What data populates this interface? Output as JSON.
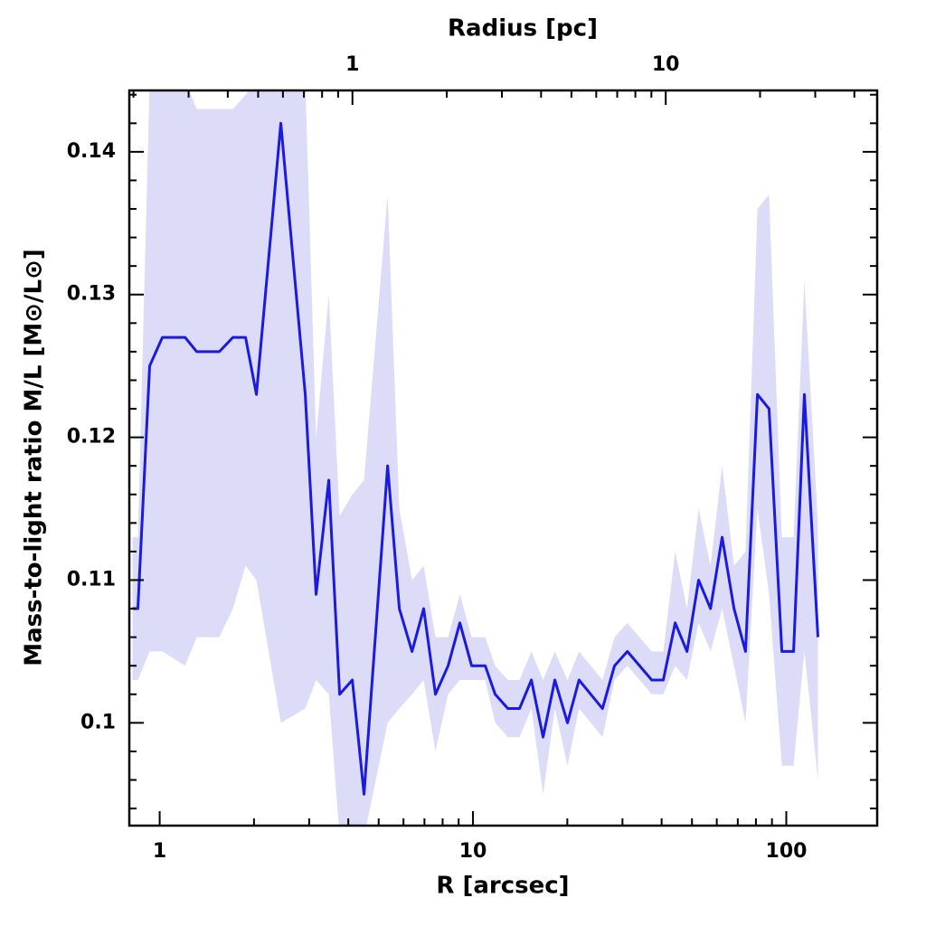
{
  "chart_data": {
    "type": "line",
    "xlabel": "R [arcsec]",
    "x2label": "Radius [pc]",
    "ylabel": "Mass-to-light ratio M/L [M⊙/L⊙]",
    "xscale": "log",
    "xlim": [
      0.8,
      195
    ],
    "xticks": [
      1,
      10,
      100
    ],
    "xminorticks": [
      2,
      3,
      4,
      5,
      6,
      7,
      8,
      9,
      20,
      30,
      40,
      50,
      60,
      70,
      80,
      90
    ],
    "x2lim": [
      0.194,
      47.3
    ],
    "x2ticks": [
      1,
      10
    ],
    "x2minorticks": [
      0.2,
      0.3,
      0.4,
      0.5,
      0.6,
      0.7,
      0.8,
      0.9,
      2,
      3,
      4,
      5,
      6,
      7,
      8,
      9,
      20,
      30,
      40
    ],
    "ylim": [
      0.0928,
      0.1443
    ],
    "yticks": [
      0.1,
      0.11,
      0.12,
      0.13,
      0.14
    ],
    "yminorticks": [
      0.094,
      0.096,
      0.098,
      0.102,
      0.104,
      0.106,
      0.108,
      0.112,
      0.114,
      0.116,
      0.118,
      0.122,
      0.124,
      0.126,
      0.128,
      0.132,
      0.134,
      0.136,
      0.138,
      0.142,
      0.144
    ],
    "x": [
      0.819,
      0.852,
      0.929,
      1.02,
      1.205,
      1.313,
      1.55,
      1.713,
      1.88,
      2.036,
      2.436,
      2.915,
      3.157,
      3.465,
      3.753,
      4.12,
      4.49,
      5.34,
      5.82,
      6.39,
      6.96,
      7.59,
      8.33,
      9.08,
      9.9,
      10.94,
      11.77,
      12.92,
      14.08,
      15.36,
      16.74,
      18.25,
      20.03,
      21.8,
      25.9,
      28.3,
      31.1,
      37.2,
      40.5,
      44.2,
      48.2,
      52.5,
      57.3,
      62.4,
      68.1,
      74.1,
      80.9,
      88.1,
      96.8,
      105.5,
      114.2,
      126.2
    ],
    "series": [
      {
        "color": "#1a1ae0",
        "values": [
          0.108,
          0.108,
          0.125,
          0.127,
          0.127,
          0.126,
          0.126,
          0.127,
          0.127,
          0.123,
          0.142,
          0.123,
          0.109,
          0.117,
          0.102,
          0.103,
          0.095,
          0.118,
          0.108,
          0.105,
          0.108,
          0.102,
          0.104,
          0.107,
          0.104,
          0.104,
          0.102,
          0.101,
          0.101,
          0.103,
          0.099,
          0.103,
          0.1,
          0.103,
          0.101,
          0.104,
          0.105,
          0.103,
          0.103,
          0.107,
          0.105,
          0.11,
          0.108,
          0.113,
          0.108,
          0.105,
          0.123,
          0.122,
          0.105,
          0.105,
          0.123,
          0.106
        ]
      }
    ],
    "band": {
      "color": "#dcdcf8",
      "upper": [
        0.113,
        0.113,
        0.145,
        0.145,
        0.145,
        0.143,
        0.143,
        0.143,
        0.144,
        0.145,
        0.145,
        0.145,
        0.12,
        0.13,
        0.1145,
        0.116,
        0.117,
        0.137,
        0.115,
        0.11,
        0.111,
        0.106,
        0.106,
        0.109,
        0.106,
        0.106,
        0.104,
        0.103,
        0.103,
        0.105,
        0.103,
        0.105,
        0.103,
        0.105,
        0.103,
        0.106,
        0.107,
        0.105,
        0.105,
        0.112,
        0.108,
        0.115,
        0.111,
        0.118,
        0.111,
        0.112,
        0.136,
        0.137,
        0.113,
        0.113,
        0.131,
        0.114
      ],
      "lower": [
        0.103,
        0.103,
        0.105,
        0.105,
        0.104,
        0.106,
        0.106,
        0.108,
        0.111,
        0.11,
        0.1,
        0.101,
        0.103,
        0.102,
        0.092,
        0.092,
        0.092,
        0.1,
        0.101,
        0.102,
        0.103,
        0.098,
        0.102,
        0.103,
        0.103,
        0.103,
        0.1,
        0.099,
        0.099,
        0.101,
        0.095,
        0.101,
        0.097,
        0.101,
        0.099,
        0.103,
        0.104,
        0.102,
        0.102,
        0.104,
        0.103,
        0.107,
        0.105,
        0.108,
        0.104,
        0.1,
        0.115,
        0.109,
        0.097,
        0.097,
        0.105,
        0.096
      ]
    }
  }
}
